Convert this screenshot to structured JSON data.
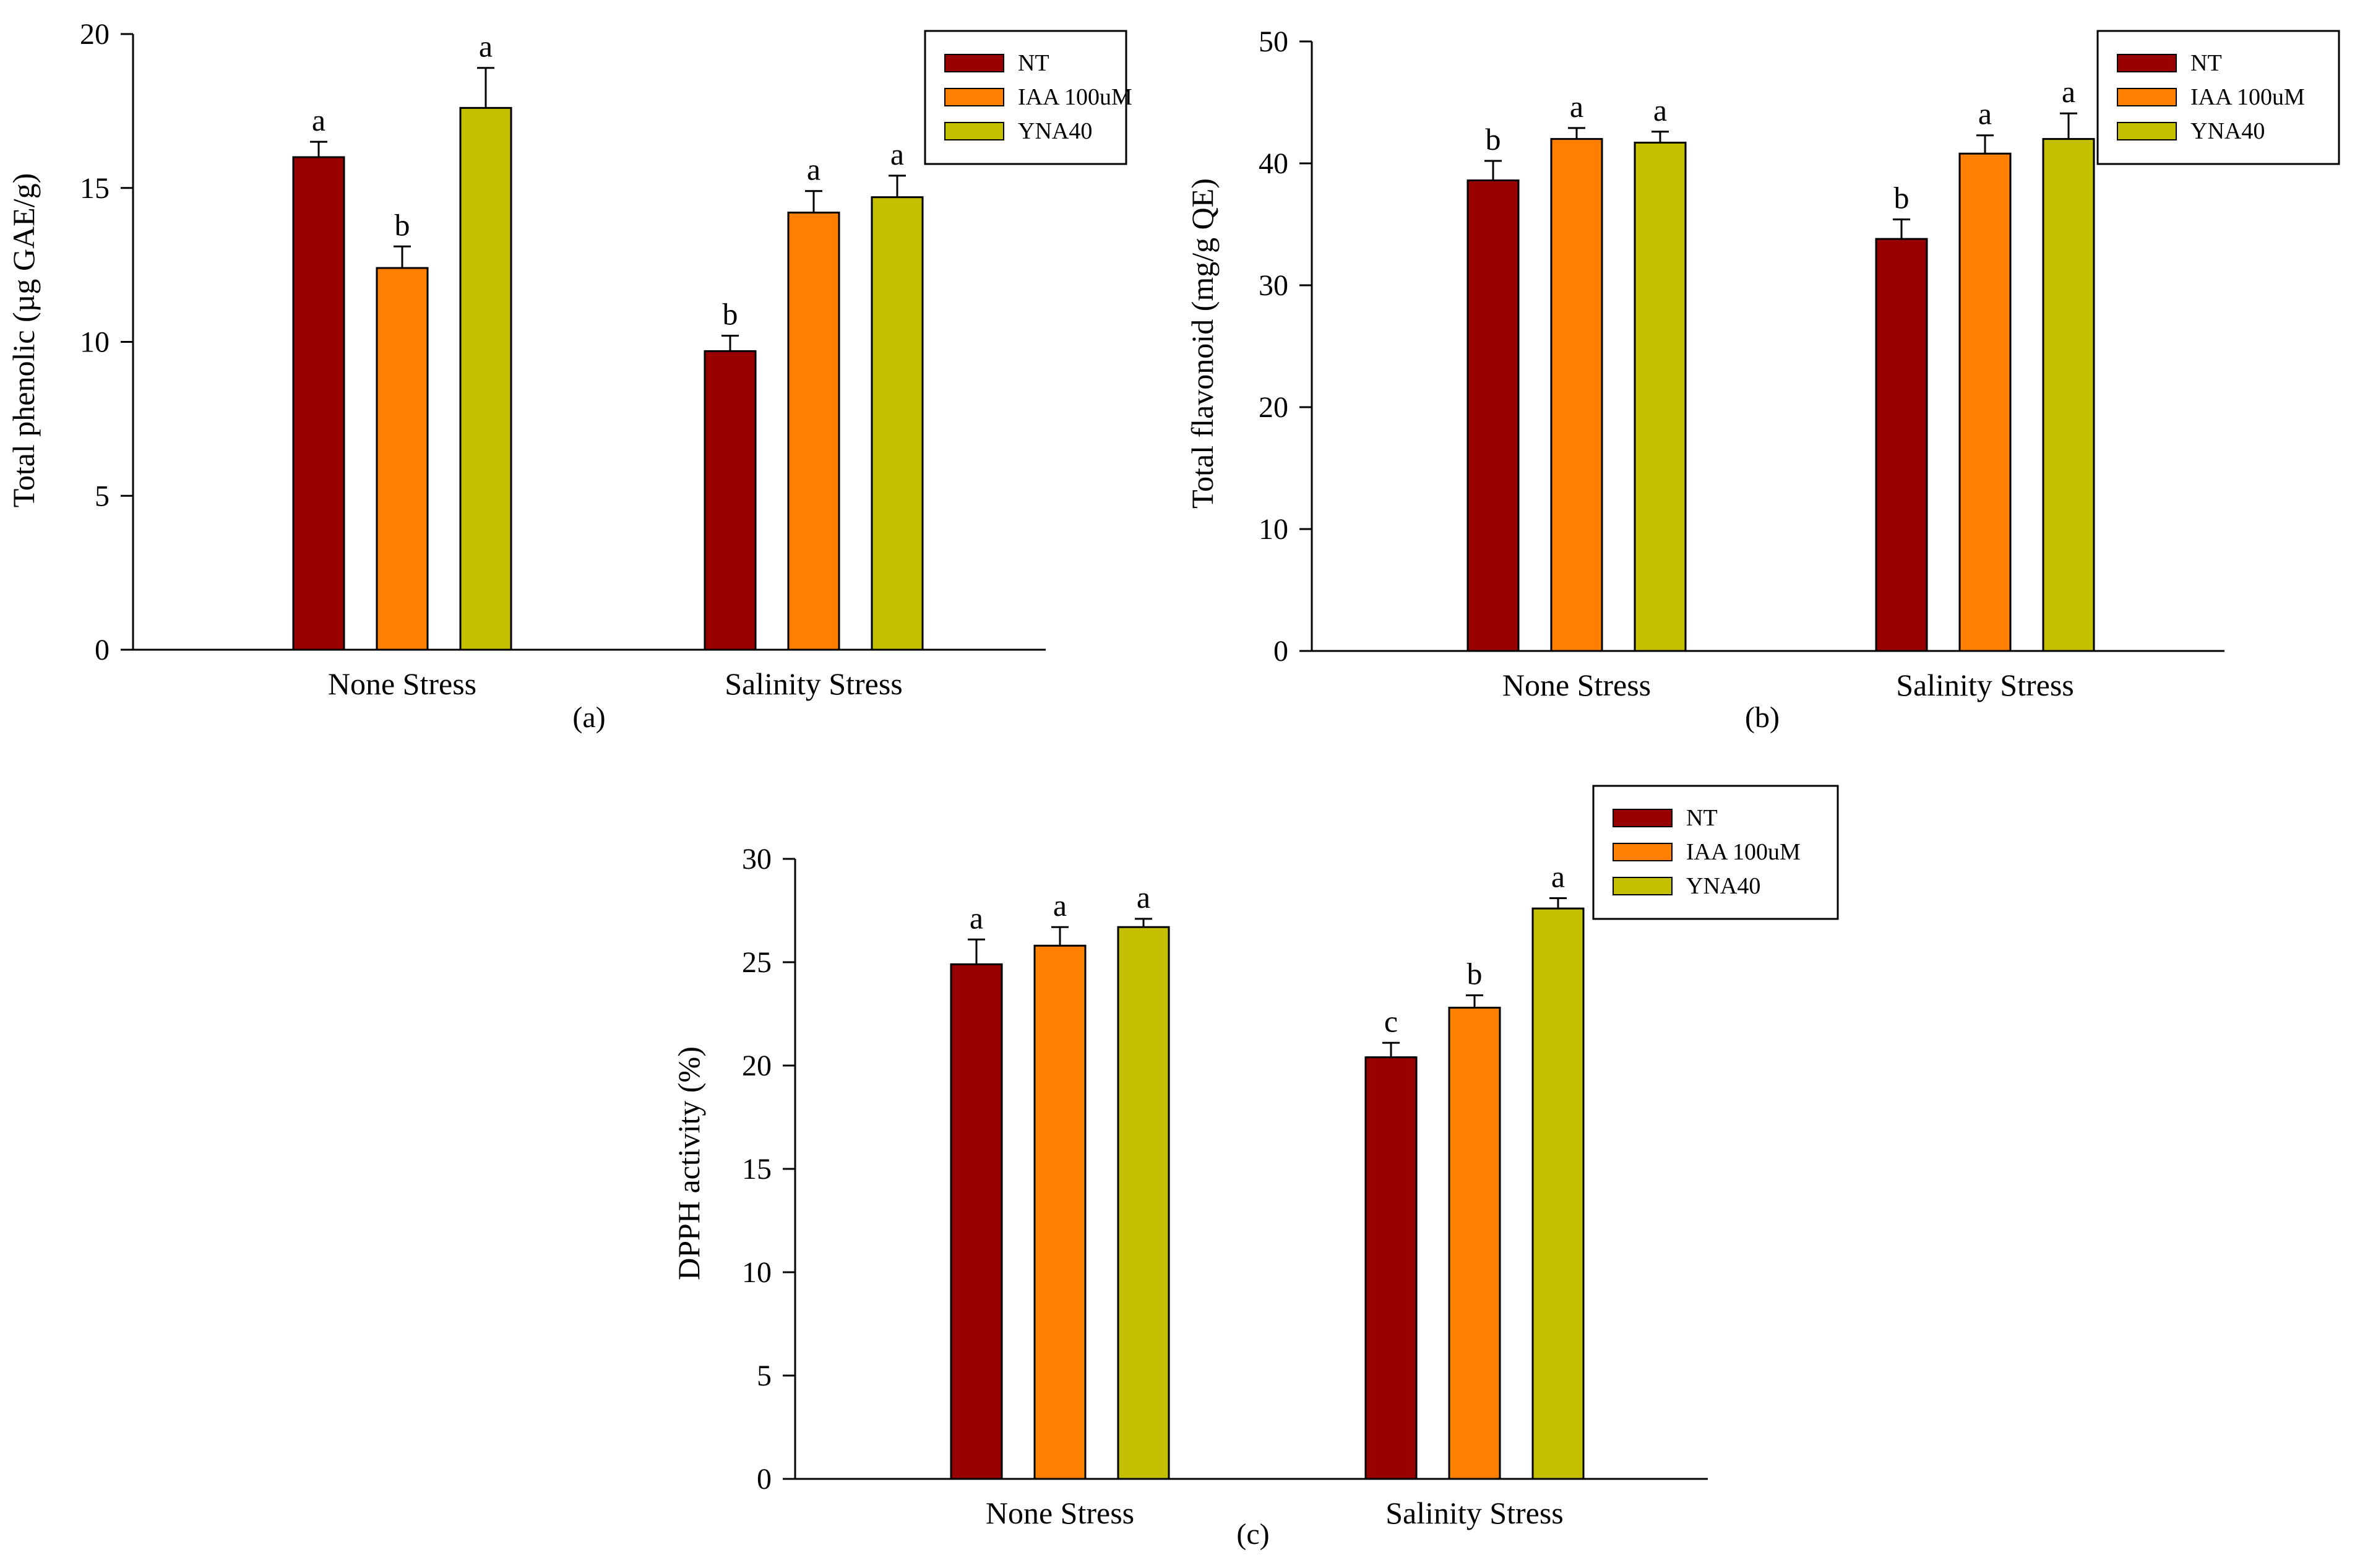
{
  "colors": {
    "NT": "#990000",
    "IAA 100uM": "#ff8000",
    "YNA40": "#c4c000",
    "axis": "#000000"
  },
  "chart_data": [
    {
      "type": "bar",
      "panel_label": "(a)",
      "categories": [
        "None Stress",
        "Salinity Stress"
      ],
      "series": [
        {
          "name": "NT",
          "values": [
            16.0,
            9.7
          ],
          "errors": [
            0.5,
            0.5
          ],
          "labels": [
            "a",
            "b"
          ]
        },
        {
          "name": "IAA 100uM",
          "values": [
            12.4,
            14.2
          ],
          "errors": [
            0.7,
            0.7
          ],
          "labels": [
            "b",
            "a"
          ]
        },
        {
          "name": "YNA40",
          "values": [
            17.6,
            14.7
          ],
          "errors": [
            1.3,
            0.7
          ],
          "labels": [
            "a",
            "a"
          ]
        }
      ],
      "ylabel": "Total phenolic (µg GAE/g)",
      "ylim": [
        0,
        20
      ],
      "yticks": [
        0,
        5,
        10,
        15,
        20
      ],
      "legend": "top-right",
      "grid": false
    },
    {
      "type": "bar",
      "panel_label": "(b)",
      "categories": [
        "None Stress",
        "Salinity Stress"
      ],
      "series": [
        {
          "name": "NT",
          "values": [
            38.6,
            33.8
          ],
          "errors": [
            1.6,
            1.6
          ],
          "labels": [
            "b",
            "b"
          ]
        },
        {
          "name": "IAA 100uM",
          "values": [
            42.0,
            40.8
          ],
          "errors": [
            0.9,
            1.5
          ],
          "labels": [
            "a",
            "a"
          ]
        },
        {
          "name": "YNA40",
          "values": [
            41.7,
            42.0
          ],
          "errors": [
            0.9,
            2.1
          ],
          "labels": [
            "a",
            "a"
          ]
        }
      ],
      "ylabel": "Total flavonoid (mg/g QE)",
      "ylim": [
        0,
        50
      ],
      "yticks": [
        0,
        10,
        20,
        30,
        40,
        50
      ],
      "legend": "top-right",
      "grid": false
    },
    {
      "type": "bar",
      "panel_label": "(c)",
      "categories": [
        "None Stress",
        "Salinity Stress"
      ],
      "series": [
        {
          "name": "NT",
          "values": [
            24.9,
            20.4
          ],
          "errors": [
            1.2,
            0.7
          ],
          "labels": [
            "a",
            "c"
          ]
        },
        {
          "name": "IAA 100uM",
          "values": [
            25.8,
            22.8
          ],
          "errors": [
            0.9,
            0.6
          ],
          "labels": [
            "a",
            "b"
          ]
        },
        {
          "name": "YNA40",
          "values": [
            26.7,
            27.6
          ],
          "errors": [
            0.4,
            0.5
          ],
          "labels": [
            "a",
            "a"
          ]
        }
      ],
      "ylabel": "DPPH activity (%)",
      "ylim": [
        0,
        30
      ],
      "yticks": [
        0,
        5,
        10,
        15,
        20,
        25,
        30
      ],
      "legend": "top-right",
      "grid": false
    }
  ]
}
